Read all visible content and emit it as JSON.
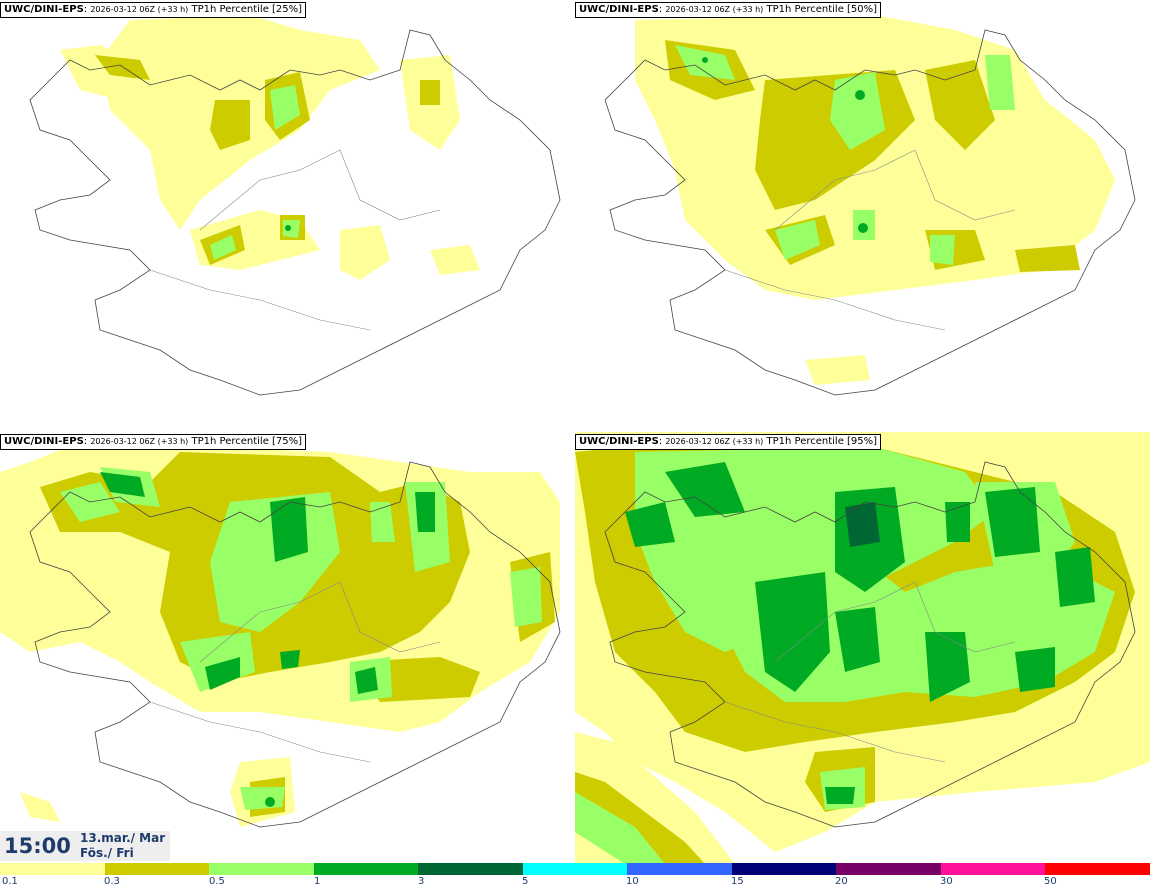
{
  "panels": [
    {
      "model": "UWC/DINI-EPS",
      "run": "2026-03-12 06Z (+33 h)",
      "field": "TP1h Percentile [25%]"
    },
    {
      "model": "UWC/DINI-EPS",
      "run": "2026-03-12 06Z (+33 h)",
      "field": "TP1h Percentile [50%]"
    },
    {
      "model": "UWC/DINI-EPS",
      "run": "2026-03-12 06Z (+33 h)",
      "field": "TP1h Percentile [75%]"
    },
    {
      "model": "UWC/DINI-EPS",
      "run": "2026-03-12 06Z (+33 h)",
      "field": "TP1h Percentile [95%]"
    }
  ],
  "valid_time": {
    "time": "15:00",
    "date_line1": "13.mar./ Mar",
    "date_line2": "Fös./ Fri"
  },
  "legend": {
    "labels": [
      "0.1",
      "0.3",
      "0.5",
      "1",
      "3",
      "5",
      "10",
      "15",
      "20",
      "30",
      "50"
    ],
    "colors": [
      "#ffff99",
      "#cccc00",
      "#99ff66",
      "#00aa22",
      "#006633",
      "#00ffff",
      "#3366ff",
      "#000077",
      "#770066",
      "#ff1199",
      "#ff0000"
    ]
  }
}
